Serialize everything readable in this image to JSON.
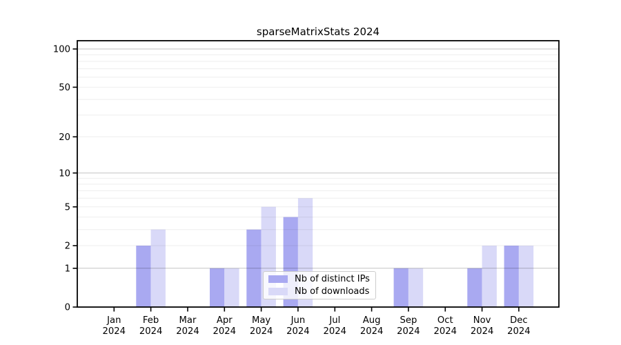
{
  "title": "sparseMatrixStats 2024",
  "chart_data": {
    "type": "bar",
    "title": "sparseMatrixStats 2024",
    "categories": [
      "Jan",
      "Feb",
      "Mar",
      "Apr",
      "May",
      "Jun",
      "Jul",
      "Aug",
      "Sep",
      "Oct",
      "Nov",
      "Dec"
    ],
    "year_label": "2024",
    "series": [
      {
        "name": "Nb of distinct IPs",
        "color": "#a9a9f1",
        "values": [
          0,
          2,
          0,
          1,
          3,
          4,
          0,
          0,
          1,
          0,
          1,
          2
        ]
      },
      {
        "name": "Nb of downloads",
        "color": "#d9d9f8",
        "values": [
          0,
          3,
          0,
          1,
          5,
          6,
          0,
          0,
          1,
          0,
          2,
          2
        ]
      }
    ],
    "yscale": "log1p",
    "ylim": [
      0,
      116
    ],
    "yticks": [
      0,
      1,
      2,
      5,
      10,
      20,
      50,
      100
    ],
    "grid": true,
    "grid_major_values": [
      1,
      10,
      100
    ],
    "grid_minor_values": [
      2,
      3,
      4,
      5,
      6,
      7,
      8,
      9,
      20,
      30,
      40,
      50,
      60,
      70,
      80,
      90
    ],
    "legend_position": "lower center"
  },
  "colors": {
    "background": "#ffffff",
    "axis": "#000000",
    "bar_distinct_ips": "#a9a9f1",
    "bar_downloads": "#d9d9f8",
    "grid_major": "rgba(0,0,0,0.24)",
    "grid_minor": "rgba(0,0,0,0.07)",
    "legend_border": "#cccccc",
    "tick_label": "#000000"
  }
}
